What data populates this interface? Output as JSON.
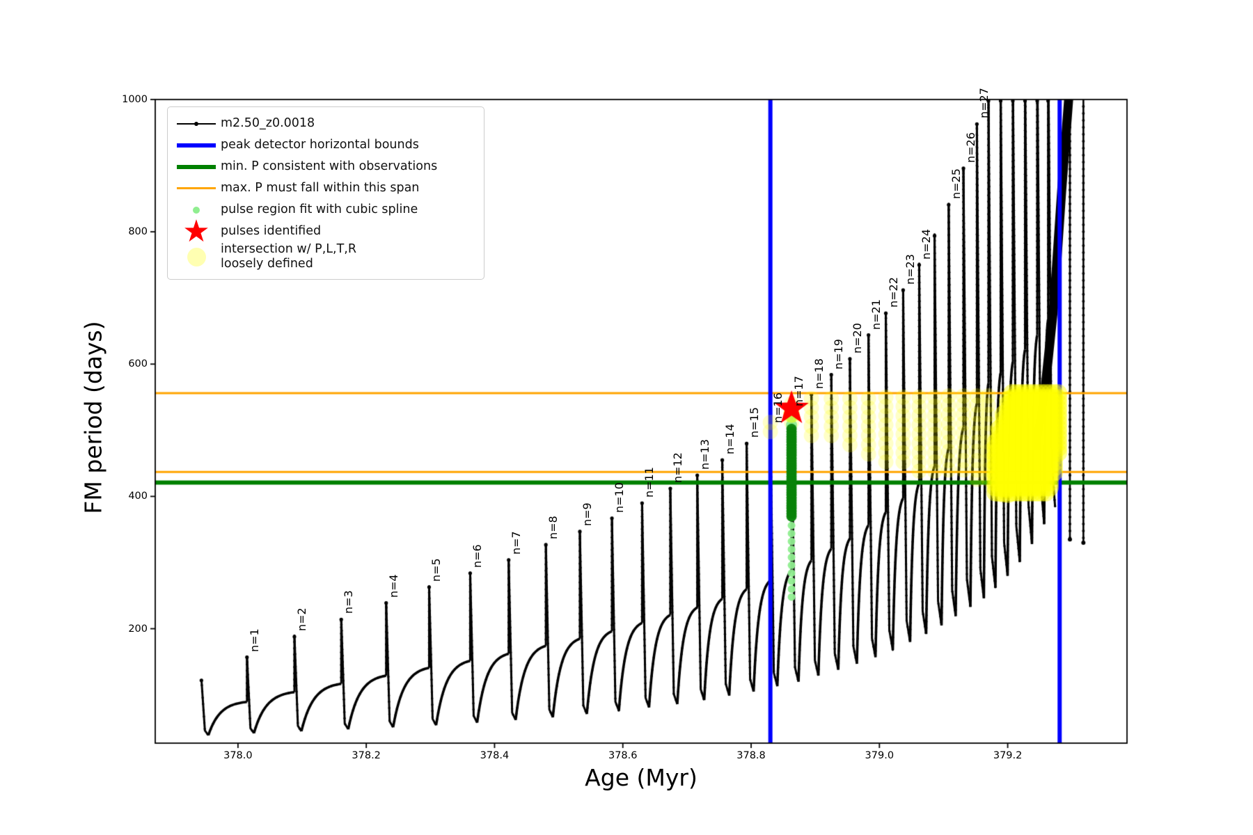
{
  "axes": {
    "xlabel": "Age (Myr)",
    "ylabel": "FM period (days)",
    "xtick_labels": [
      "378.0",
      "378.2",
      "378.4",
      "378.6",
      "378.8",
      "379.0",
      "379.2"
    ],
    "xtick_values": [
      378.0,
      378.2,
      378.4,
      378.6,
      378.8,
      379.0,
      379.2
    ],
    "ytick_labels": [
      "200",
      "400",
      "600",
      "800",
      "1000"
    ],
    "ytick_values": [
      200,
      400,
      600,
      800,
      1000
    ]
  },
  "legend": {
    "items": [
      {
        "label": "m2.50_z0.0018",
        "marker": "line-dot",
        "color": "#000000"
      },
      {
        "label": "peak detector horizontal bounds",
        "marker": "thick-line",
        "color": "#0000ff"
      },
      {
        "label": "min. P consistent with observations",
        "marker": "thick-line",
        "color": "#008000"
      },
      {
        "label": "max. P must fall within this span",
        "marker": "line",
        "color": "#ffa500"
      },
      {
        "label": "pulse region fit with cubic spline",
        "marker": "small-dot",
        "color": "#90ee90"
      },
      {
        "label": "pulses identified",
        "marker": "star",
        "color": "#ff0000"
      },
      {
        "label": "intersection w/ P,L,T,R\nloosely defined",
        "marker": "large-pale-dot",
        "color": "#f7f7bb"
      }
    ]
  },
  "chart_data": {
    "type": "line",
    "title": "",
    "xlabel": "Age (Myr)",
    "ylabel": "FM period (days)",
    "xlim": [
      377.871,
      379.386
    ],
    "ylim": [
      27,
      1000
    ],
    "grid": false,
    "legend_position": "upper left",
    "series_name": "m2.50_z0.0018",
    "colors": {
      "series": "#000000",
      "peak_bounds": "#0000ff",
      "min_P": "#008000",
      "max_P_span": "#ffa500",
      "spline_dense": "#0a830a",
      "spline_sparse": "#90ee90",
      "pulse_star": "#ff0000",
      "intersection": "#ffff00"
    },
    "peak_detector_bounds_x": [
      378.83,
      379.281
    ],
    "min_P_line_y": 421,
    "max_P_span_y": [
      437,
      556
    ],
    "identified_pulse": {
      "age": 378.863,
      "period": 533
    },
    "spline_fit": {
      "age": 378.863,
      "dense_range": [
        368,
        502
      ],
      "sparse_range": [
        246,
        368
      ],
      "upper_dots": [
        508,
        520,
        531
      ]
    },
    "pulses": [
      {
        "n": 0,
        "age": 377.943,
        "peak": 124,
        "min_after": 39,
        "label": null
      },
      {
        "n": 1,
        "age": 378.014,
        "peak": 159,
        "min_after": 42,
        "label": "n=1"
      },
      {
        "n": 2,
        "age": 378.088,
        "peak": 190,
        "min_after": 45,
        "label": "n=2"
      },
      {
        "n": 3,
        "age": 378.161,
        "peak": 216,
        "min_after": 48,
        "label": "n=3"
      },
      {
        "n": 4,
        "age": 378.231,
        "peak": 241,
        "min_after": 51,
        "label": "n=4"
      },
      {
        "n": 5,
        "age": 378.298,
        "peak": 265,
        "min_after": 54,
        "label": "n=5"
      },
      {
        "n": 6,
        "age": 378.362,
        "peak": 286,
        "min_after": 58,
        "label": "n=6"
      },
      {
        "n": 7,
        "age": 378.422,
        "peak": 306,
        "min_after": 62,
        "label": "n=7"
      },
      {
        "n": 8,
        "age": 378.48,
        "peak": 329,
        "min_after": 66,
        "label": "n=8"
      },
      {
        "n": 9,
        "age": 378.533,
        "peak": 349,
        "min_after": 71,
        "label": "n=9"
      },
      {
        "n": 10,
        "age": 378.583,
        "peak": 369,
        "min_after": 76,
        "label": "n=10"
      },
      {
        "n": 11,
        "age": 378.63,
        "peak": 392,
        "min_after": 81,
        "label": "n=11"
      },
      {
        "n": 12,
        "age": 378.674,
        "peak": 414,
        "min_after": 86,
        "label": "n=12"
      },
      {
        "n": 13,
        "age": 378.716,
        "peak": 434,
        "min_after": 92,
        "label": "n=13"
      },
      {
        "n": 14,
        "age": 378.755,
        "peak": 457,
        "min_after": 99,
        "label": "n=14"
      },
      {
        "n": 15,
        "age": 378.793,
        "peak": 482,
        "min_after": 105,
        "label": "n=15"
      },
      {
        "n": 16,
        "age": 378.83,
        "peak": 505,
        "min_after": 113,
        "label": "n=16"
      },
      {
        "n": 17,
        "age": 378.863,
        "peak": 530,
        "min_after": 120,
        "label": "n=17"
      },
      {
        "n": 18,
        "age": 378.894,
        "peak": 556,
        "min_after": 129,
        "label": "n=18"
      },
      {
        "n": 19,
        "age": 378.925,
        "peak": 586,
        "min_after": 138,
        "label": "n=19"
      },
      {
        "n": 20,
        "age": 378.954,
        "peak": 610,
        "min_after": 147,
        "label": "n=20"
      },
      {
        "n": 21,
        "age": 378.983,
        "peak": 646,
        "min_after": 157,
        "label": "n=21"
      },
      {
        "n": 22,
        "age": 379.01,
        "peak": 679,
        "min_after": 168,
        "label": "n=22"
      },
      {
        "n": 23,
        "age": 379.037,
        "peak": 714,
        "min_after": 180,
        "label": "n=23"
      },
      {
        "n": 24,
        "age": 379.062,
        "peak": 752,
        "min_after": 192,
        "label": "n=24"
      },
      {
        "n": 25,
        "age": 379.086,
        "peak": 796,
        "min_after": 205,
        "label": null
      },
      {
        "n": 26,
        "age": 379.108,
        "peak": 843,
        "min_after": 219,
        "label": "n=25"
      },
      {
        "n": 27,
        "age": 379.131,
        "peak": 898,
        "min_after": 233,
        "label": "n=26"
      },
      {
        "n": 28,
        "age": 379.152,
        "peak": 965,
        "min_after": 246,
        "label": "n=27"
      },
      {
        "n": 29,
        "age": 379.17,
        "peak": 1020,
        "min_after": 262,
        "label": null
      },
      {
        "n": 30,
        "age": 379.189,
        "peak": 1035,
        "min_after": 280,
        "label": null
      },
      {
        "n": 31,
        "age": 379.208,
        "peak": 1050,
        "min_after": 301,
        "label": null
      },
      {
        "n": 32,
        "age": 379.227,
        "peak": 1065,
        "min_after": 328,
        "label": null
      },
      {
        "n": 33,
        "age": 379.246,
        "peak": 1080,
        "min_after": 358,
        "label": null
      },
      {
        "n": 34,
        "age": 379.263,
        "peak": 1095,
        "min_after": 385,
        "label": null
      }
    ],
    "bare_spikes": [
      {
        "age": 379.297,
        "top": 1000,
        "bottom": 335
      },
      {
        "age": 379.318,
        "top": 1000,
        "bottom": 330
      }
    ],
    "final_rise": [
      [
        379.243,
        470
      ],
      [
        379.258,
        560
      ],
      [
        379.272,
        690
      ],
      [
        379.284,
        860
      ],
      [
        379.295,
        1000
      ]
    ],
    "intersection_columns": [
      {
        "age": 378.83,
        "top": 512,
        "bottom": 498
      },
      {
        "age": 378.863,
        "top": 540,
        "bottom": 505
      },
      {
        "age": 378.894,
        "top": 548,
        "bottom": 492
      },
      {
        "age": 378.925,
        "top": 548,
        "bottom": 487
      },
      {
        "age": 378.954,
        "top": 548,
        "bottom": 472
      },
      {
        "age": 378.983,
        "top": 548,
        "bottom": 462
      },
      {
        "age": 379.01,
        "top": 550,
        "bottom": 445
      },
      {
        "age": 379.037,
        "top": 550,
        "bottom": 442
      },
      {
        "age": 379.062,
        "top": 550,
        "bottom": 438
      },
      {
        "age": 379.086,
        "top": 550,
        "bottom": 435
      },
      {
        "age": 379.108,
        "top": 552,
        "bottom": 430
      },
      {
        "age": 379.131,
        "top": 552,
        "bottom": 428
      },
      {
        "age": 379.152,
        "top": 552,
        "bottom": 425
      },
      {
        "age": 379.17,
        "top": 552,
        "bottom": 420
      }
    ],
    "intersection_blob": {
      "x_range": [
        379.181,
        379.283
      ],
      "top": 556,
      "bottom": 402
    }
  }
}
